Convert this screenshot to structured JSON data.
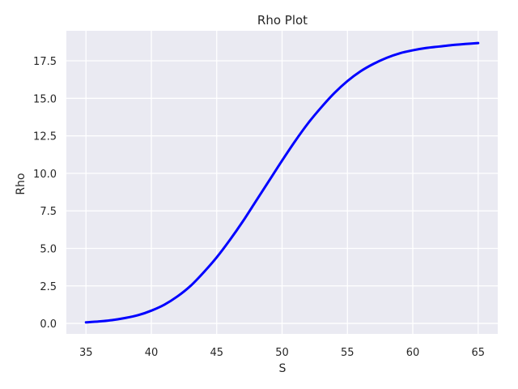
{
  "colors": {
    "plot_background": "#eaeaf2",
    "grid": "#ffffff",
    "series": "#0000ff",
    "text": "#262626"
  },
  "chart_data": {
    "type": "line",
    "title": "Rho Plot",
    "xlabel": "S",
    "ylabel": "Rho",
    "xlim": [
      33.5,
      66.5
    ],
    "ylim": [
      -0.7,
      19.5
    ],
    "grid": true,
    "xticks": [
      35,
      40,
      45,
      50,
      55,
      60,
      65
    ],
    "xtick_labels": [
      "35",
      "40",
      "45",
      "50",
      "55",
      "60",
      "65"
    ],
    "yticks": [
      0,
      2.5,
      5,
      7.5,
      10,
      12.5,
      15,
      17.5
    ],
    "ytick_labels": [
      "0.0",
      "2.5",
      "5.0",
      "7.5",
      "10.0",
      "12.5",
      "15.0",
      "17.5"
    ],
    "series": [
      {
        "color": "#0000ff",
        "x": [
          35,
          36,
          37,
          38,
          39,
          40,
          41,
          42,
          43,
          44,
          45,
          46,
          47,
          48,
          49,
          50,
          51,
          52,
          53,
          54,
          55,
          56,
          57,
          58,
          59,
          60,
          61,
          62,
          63,
          64,
          65
        ],
        "y": [
          0.07,
          0.13,
          0.22,
          0.36,
          0.55,
          0.85,
          1.25,
          1.8,
          2.5,
          3.4,
          4.4,
          5.55,
          6.8,
          8.15,
          9.5,
          10.85,
          12.15,
          13.35,
          14.4,
          15.35,
          16.15,
          16.8,
          17.3,
          17.7,
          18.0,
          18.2,
          18.35,
          18.45,
          18.55,
          18.62,
          18.68
        ]
      }
    ]
  }
}
